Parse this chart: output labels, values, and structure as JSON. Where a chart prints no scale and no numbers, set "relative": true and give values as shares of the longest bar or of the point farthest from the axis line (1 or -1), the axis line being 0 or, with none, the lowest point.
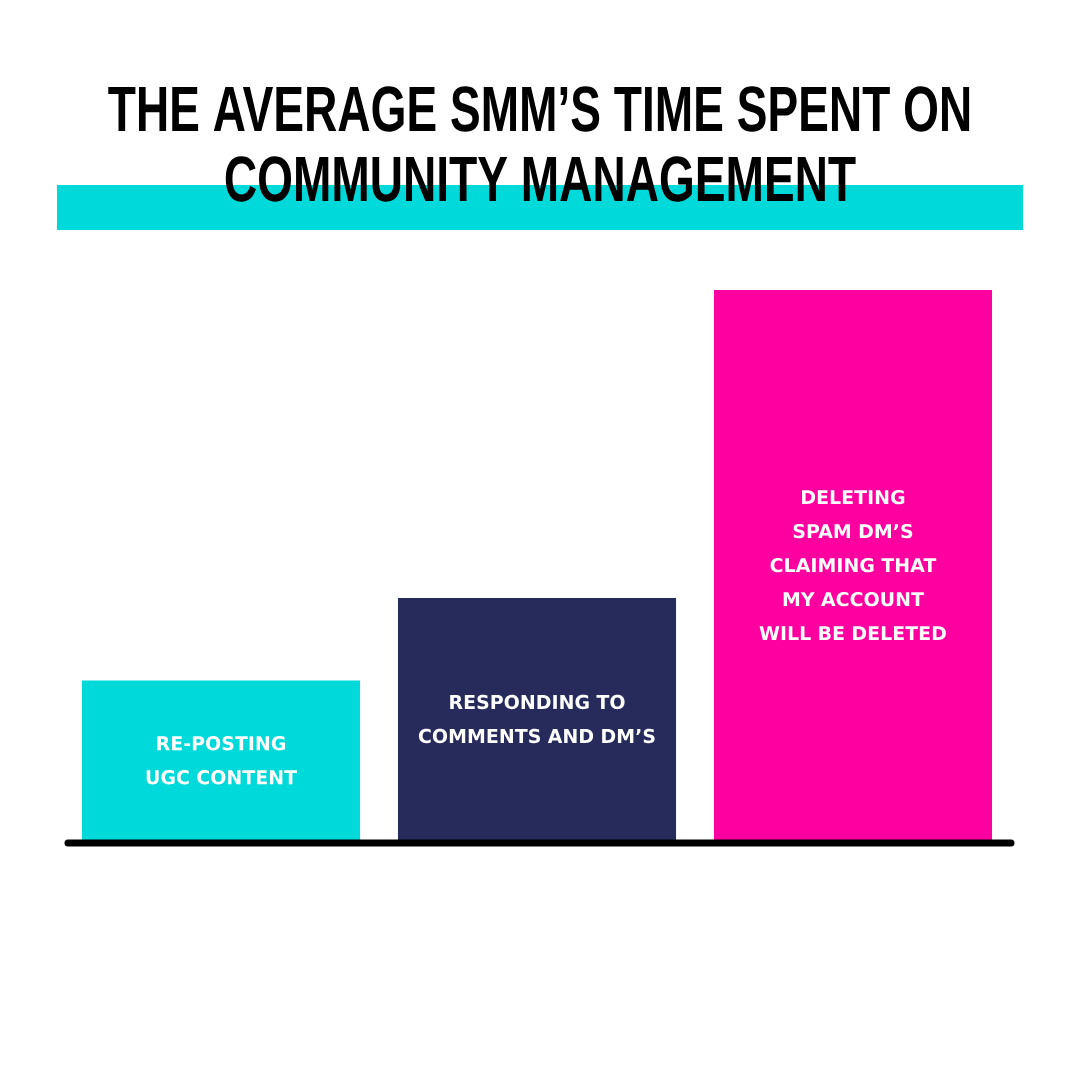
{
  "chart_data": {
    "type": "bar",
    "title": "THE AVERAGE SMM’S TIME SPENT ON COMMUNITY MANAGEMENT",
    "categories": [
      "RE-POSTING UGC CONTENT",
      "RESPONDING TO COMMENTS AND DM’S",
      "DELETING SPAM DM’S CLAIMING THAT MY ACCOUNT WILL BE DELETED"
    ],
    "values": [
      0.29,
      0.44,
      1
    ],
    "colors": [
      "#00d9d9",
      "#262b5c",
      "#ff00a0"
    ],
    "relative": true
  }
}
